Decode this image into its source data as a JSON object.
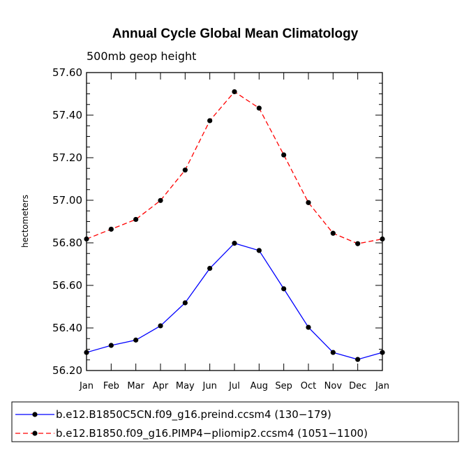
{
  "chart_data": {
    "type": "line",
    "title": "Annual Cycle Global Mean Climatology",
    "subtitle": "500mb geop height",
    "ylabel": "hectometers",
    "xlabel": "",
    "categories": [
      "Jan",
      "Feb",
      "Mar",
      "Apr",
      "May",
      "Jun",
      "Jul",
      "Aug",
      "Sep",
      "Oct",
      "Nov",
      "Dec",
      "Jan"
    ],
    "ylim": [
      56.2,
      57.6
    ],
    "yticks": [
      "56.20",
      "56.40",
      "56.60",
      "56.80",
      "57.00",
      "57.20",
      "57.40",
      "57.60"
    ],
    "series": [
      {
        "name": "b.e12.B1850C5CN.f09_g16.preind.ccsm4 (130−179)",
        "color": "#0000ff",
        "dash": "solid",
        "values": [
          56.285,
          56.318,
          56.343,
          56.41,
          56.518,
          56.68,
          56.798,
          56.764,
          56.584,
          56.403,
          56.285,
          56.252,
          56.285
        ]
      },
      {
        "name": "b.e12.B1850.f09_g16.PIMP4−pliomip2.ccsm4 (1051−1100)",
        "color": "#ff0000",
        "dash": "dashed",
        "values": [
          56.818,
          56.864,
          56.91,
          56.999,
          57.142,
          57.374,
          57.51,
          57.433,
          57.213,
          56.989,
          56.845,
          56.796,
          56.818
        ]
      }
    ],
    "legend_position": "bottom"
  }
}
